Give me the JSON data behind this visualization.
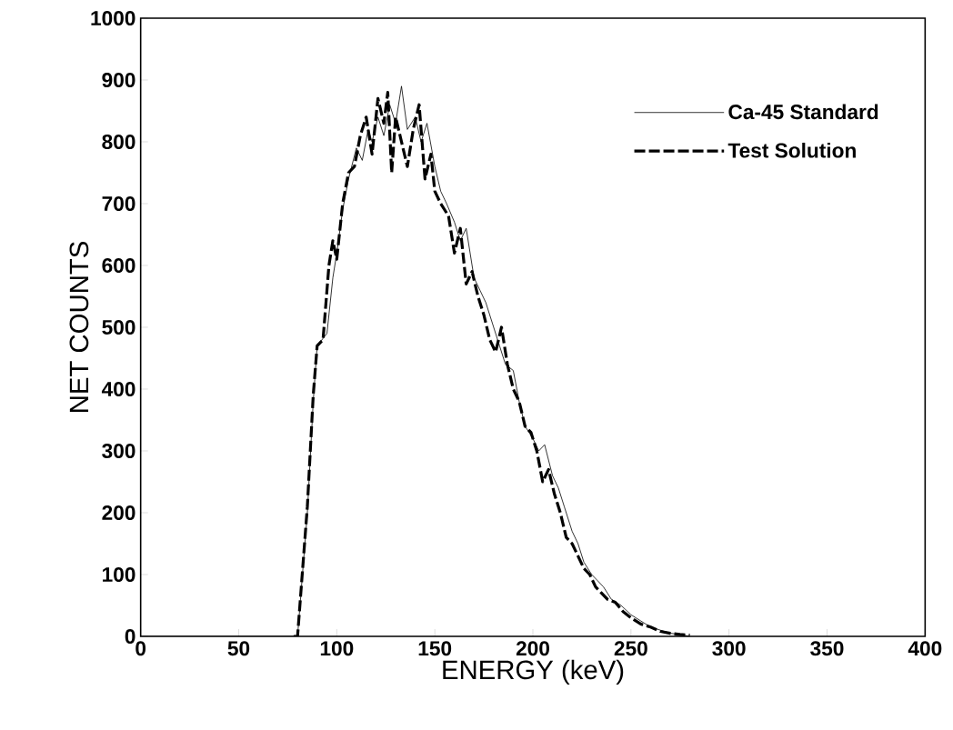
{
  "chart_data": {
    "type": "line",
    "xlabel": "ENERGY (keV)",
    "ylabel": "NET COUNTS",
    "xlim": [
      0,
      400
    ],
    "ylim": [
      0,
      1000
    ],
    "xticks": [
      0,
      50,
      100,
      150,
      200,
      250,
      300,
      350,
      400
    ],
    "yticks": [
      0,
      100,
      200,
      300,
      400,
      500,
      600,
      700,
      800,
      900,
      1000
    ],
    "grid": false,
    "legend": "top right",
    "marker": "none",
    "series": [
      {
        "name": "Ca-45 Standard",
        "color": "#000000",
        "line_style": "solid",
        "x": [
          0,
          78,
          80,
          85,
          88,
          90,
          95,
          98,
          100,
          103,
          106,
          110,
          113,
          116,
          118,
          121,
          124,
          127,
          130,
          133,
          136,
          140,
          143,
          146,
          150,
          153,
          156,
          160,
          163,
          166,
          170,
          173,
          176,
          180,
          183,
          186,
          190,
          193,
          196,
          200,
          203,
          206,
          210,
          213,
          216,
          220,
          223,
          226,
          230,
          233,
          236,
          240,
          245,
          250,
          255,
          260,
          265,
          270,
          275,
          280
        ],
        "values": [
          0,
          0,
          0,
          200,
          380,
          470,
          490,
          580,
          620,
          690,
          740,
          790,
          770,
          820,
          800,
          840,
          810,
          860,
          830,
          890,
          820,
          840,
          800,
          830,
          760,
          720,
          700,
          670,
          640,
          660,
          580,
          560,
          540,
          500,
          470,
          440,
          430,
          380,
          340,
          320,
          300,
          310,
          260,
          240,
          210,
          170,
          150,
          120,
          100,
          90,
          80,
          60,
          50,
          35,
          25,
          15,
          10,
          5,
          3,
          0
        ]
      },
      {
        "name": "Test Solution",
        "color": "#000000",
        "line_style": "dashed",
        "x": [
          78,
          80,
          85,
          88,
          90,
          93,
          96,
          98,
          100,
          103,
          106,
          109,
          112,
          115,
          118,
          121,
          124,
          126,
          128,
          130,
          133,
          136,
          139,
          142,
          145,
          148,
          150,
          153,
          157,
          160,
          163,
          166,
          169,
          172,
          175,
          178,
          181,
          184,
          187,
          190,
          193,
          196,
          199,
          202,
          205,
          208,
          211,
          214,
          217,
          220,
          223,
          226,
          229,
          232,
          235,
          238,
          242,
          246,
          250,
          255,
          260,
          265,
          270,
          275,
          280
        ],
        "values": [
          0,
          0,
          210,
          390,
          470,
          480,
          600,
          640,
          610,
          700,
          750,
          760,
          810,
          840,
          780,
          870,
          830,
          880,
          750,
          840,
          800,
          760,
          820,
          860,
          740,
          780,
          720,
          700,
          680,
          620,
          660,
          570,
          590,
          550,
          520,
          480,
          460,
          500,
          440,
          400,
          380,
          340,
          330,
          300,
          250,
          270,
          230,
          200,
          160,
          150,
          130,
          110,
          100,
          80,
          70,
          60,
          55,
          40,
          30,
          20,
          15,
          8,
          5,
          3,
          2
        ]
      }
    ]
  }
}
